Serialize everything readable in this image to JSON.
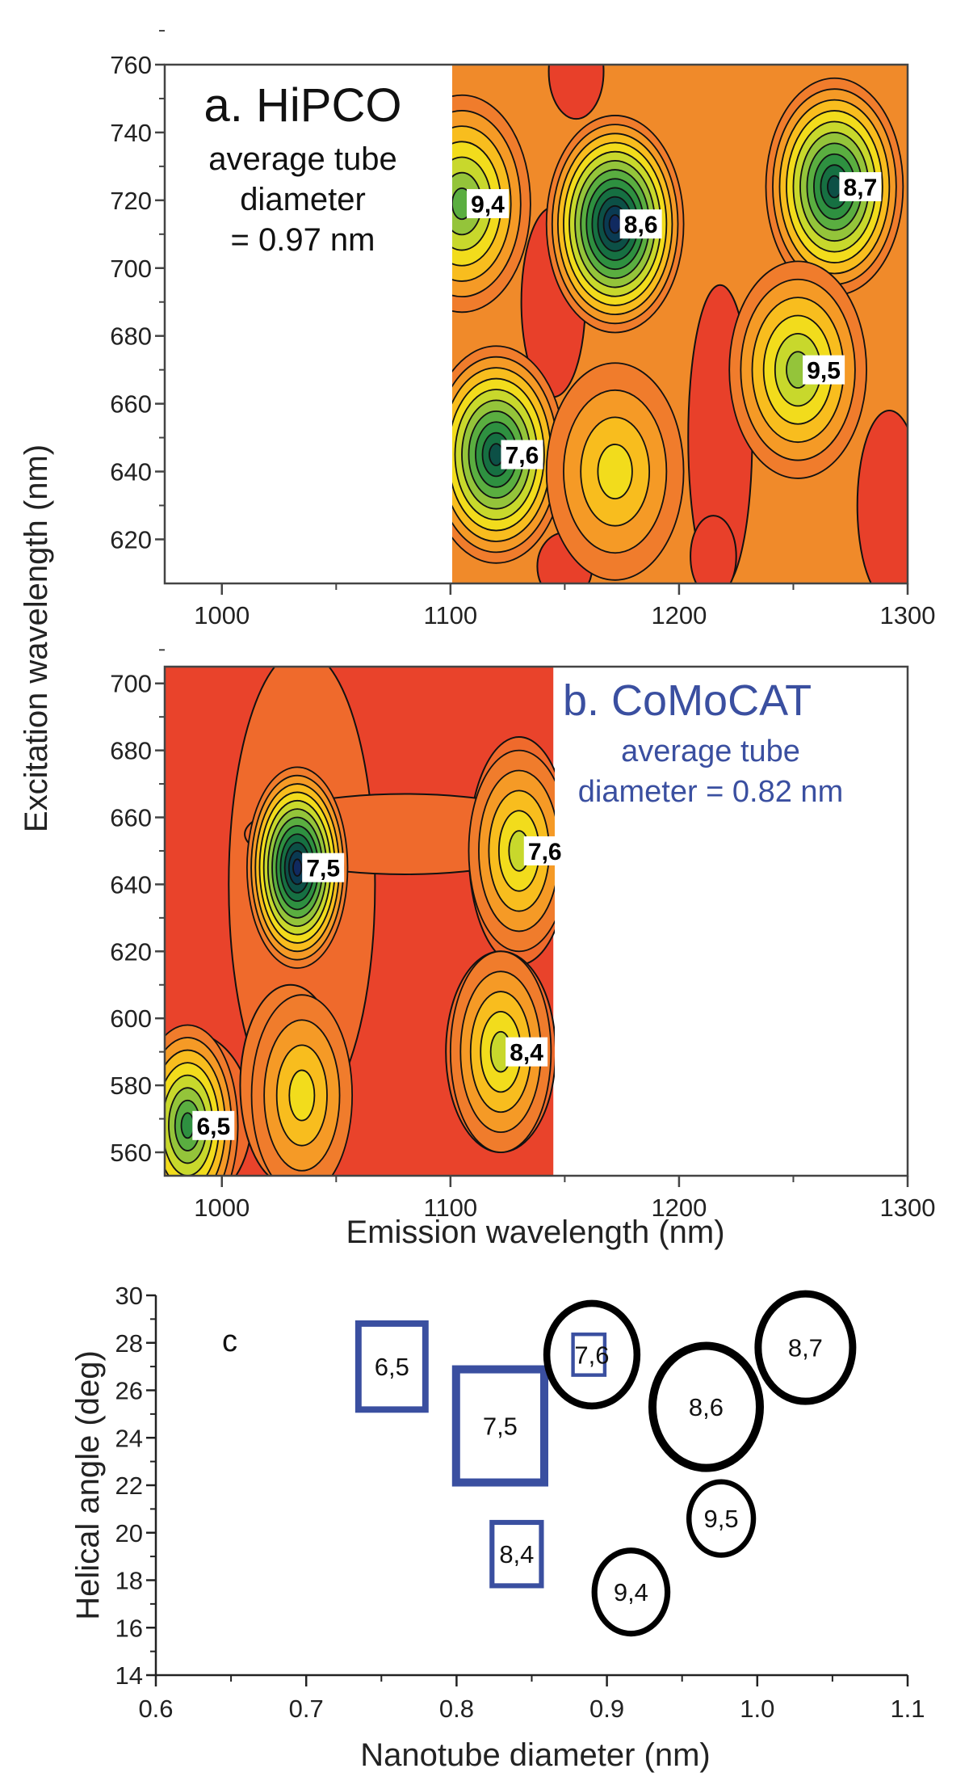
{
  "chart_data": [
    {
      "type": "heatmap",
      "panel": "a",
      "title_lines": [
        "a. HiPCO",
        "average tube",
        "diameter",
        "= 0.97 nm"
      ],
      "xlabel": "",
      "ylabel": "Excitation wavelength (nm)",
      "xlim": [
        975,
        1300
      ],
      "ylim": [
        607,
        760
      ],
      "xticks": [
        1000,
        1100,
        1200,
        1300
      ],
      "yticks": [
        620,
        640,
        660,
        680,
        700,
        720,
        740,
        760
      ],
      "data_xrange": [
        1100,
        1300
      ],
      "peaks": [
        {
          "label": "9,4",
          "emission": 1105,
          "excitation": 719,
          "relative_intensity": 0.6
        },
        {
          "label": "8,6",
          "emission": 1172,
          "excitation": 713,
          "relative_intensity": 1.0
        },
        {
          "label": "8,7",
          "emission": 1268,
          "excitation": 724,
          "relative_intensity": 0.85
        },
        {
          "label": "9,5",
          "emission": 1252,
          "excitation": 670,
          "relative_intensity": 0.5
        },
        {
          "label": "7,6",
          "emission": 1120,
          "excitation": 645,
          "relative_intensity": 0.8
        },
        {
          "label": "",
          "emission": 1172,
          "excitation": 640,
          "relative_intensity": 0.3
        }
      ],
      "colors": {
        "low": "#e8402a",
        "mid": "#f5a623",
        "high": "#2a9a40",
        "max": "#0a3050"
      }
    },
    {
      "type": "heatmap",
      "panel": "b",
      "title_lines": [
        "b. CoMoCAT",
        "average tube",
        "diameter = 0.82 nm"
      ],
      "title_color": "#3a4fa0",
      "xlabel": "Emission wavelength (nm)",
      "ylabel": "Excitation wavelength (nm)",
      "xlim": [
        975,
        1300
      ],
      "ylim": [
        553,
        705
      ],
      "xticks": [
        1000,
        1100,
        1200,
        1300
      ],
      "yticks": [
        560,
        580,
        600,
        620,
        640,
        660,
        680,
        700
      ],
      "data_xrange": [
        975,
        1145
      ],
      "peaks": [
        {
          "label": "7,5",
          "emission": 1033,
          "excitation": 645,
          "relative_intensity": 1.0
        },
        {
          "label": "7,6",
          "emission": 1130,
          "excitation": 650,
          "relative_intensity": 0.45
        },
        {
          "label": "8,4",
          "emission": 1122,
          "excitation": 590,
          "relative_intensity": 0.45
        },
        {
          "label": "6,5",
          "emission": 985,
          "excitation": 568,
          "relative_intensity": 0.7
        },
        {
          "label": "",
          "emission": 1035,
          "excitation": 577,
          "relative_intensity": 0.3
        }
      ]
    },
    {
      "type": "scatter",
      "panel": "c",
      "panel_label": "c",
      "xlabel": "Nanotube diameter (nm)",
      "ylabel": "Helical angle (deg)",
      "xlim": [
        0.6,
        1.1
      ],
      "ylim": [
        14,
        30
      ],
      "xticks": [
        "0.6",
        "0.7",
        "0.8",
        "0.9",
        "1.0",
        "1.1"
      ],
      "yticks": [
        "14",
        "16",
        "18",
        "20",
        "22",
        "24",
        "26",
        "28",
        "30"
      ],
      "series": [
        {
          "name": "CoMoCAT",
          "marker": "square",
          "color": "#3a4fa0",
          "points": [
            {
              "label": "6,5",
              "x": 0.757,
              "y": 27.0,
              "relative_intensity": 0.7
            },
            {
              "label": "7,5",
              "x": 0.829,
              "y": 24.5,
              "relative_intensity": 1.0
            },
            {
              "label": "8,4",
              "x": 0.84,
              "y": 19.1,
              "relative_intensity": 0.45
            },
            {
              "label": "",
              "x": 0.888,
              "y": 27.5,
              "relative_intensity": 0.2
            }
          ]
        },
        {
          "name": "HiPCO",
          "marker": "circle",
          "color": "#000000",
          "points": [
            {
              "label": "7,6",
              "x": 0.89,
              "y": 27.5,
              "relative_intensity": 0.8
            },
            {
              "label": "8,6",
              "x": 0.966,
              "y": 25.3,
              "relative_intensity": 1.0
            },
            {
              "label": "8,7",
              "x": 1.032,
              "y": 27.8,
              "relative_intensity": 0.85
            },
            {
              "label": "9,5",
              "x": 0.976,
              "y": 20.6,
              "relative_intensity": 0.5
            },
            {
              "label": "9,4",
              "x": 0.916,
              "y": 17.5,
              "relative_intensity": 0.6
            }
          ]
        }
      ]
    }
  ]
}
